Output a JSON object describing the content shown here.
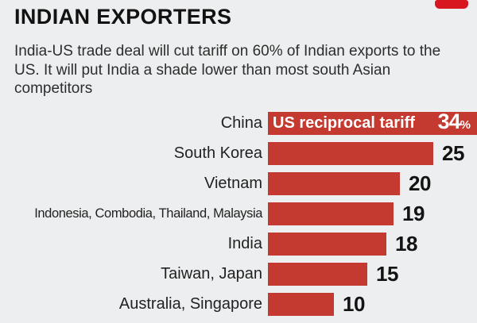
{
  "header": {
    "title": "INDIAN EXPORTERS",
    "subtitle": "India-US trade deal will cut tariff on 60% of Indian exports to the US. It will put India a shade lower than most south Asian competitors"
  },
  "colors": {
    "background": "#edeeef",
    "bar_red": "#c43a30",
    "logo_red": "#d8161f",
    "title_text": "#121212",
    "body_text": "#2d2d2d",
    "bar_inner_text": "#ffffff",
    "value_text": "#131313"
  },
  "chart_data": {
    "type": "bar",
    "orientation": "horizontal",
    "title": "US reciprocal tariff",
    "unit": "%",
    "categories": [
      "China",
      "South Korea",
      "Vietnam",
      "Indonesia, Combodia, Thailand, Malaysia",
      "India",
      "Taiwan, Japan",
      "Australia, Singapore"
    ],
    "values": [
      34,
      25,
      20,
      19,
      18,
      15,
      10
    ],
    "annotation": "US reciprocal tariff",
    "annotation_row": 0,
    "value_suffix_on_first": "%",
    "xlim": [
      0,
      34
    ],
    "grid": false,
    "legend": "none"
  }
}
